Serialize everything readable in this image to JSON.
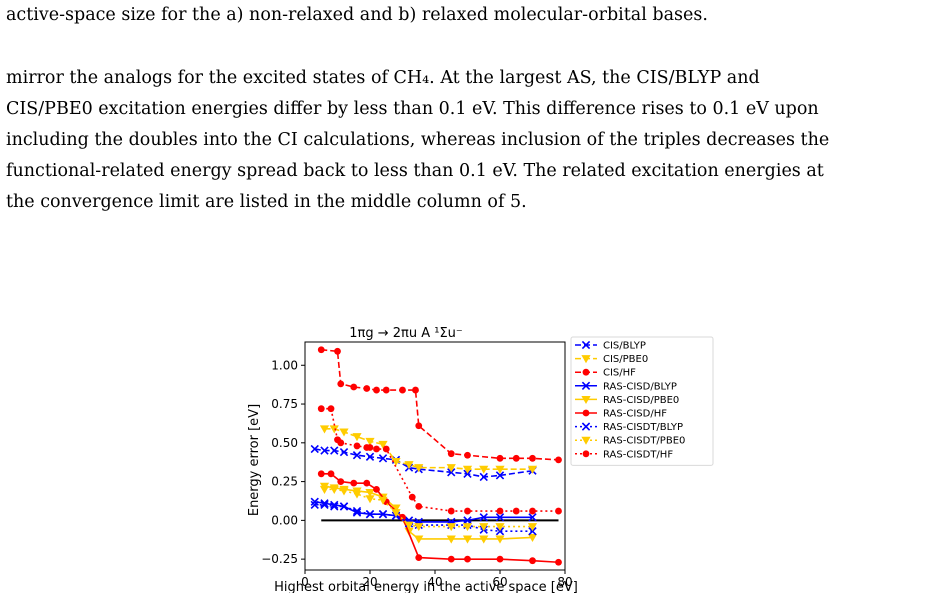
{
  "caption_tail": "active-space size for the a) non-relaxed and b) relaxed molecular-orbital bases.",
  "body": {
    "lines": [
      "mirror the analogs for the excited states of CH₄.  At the largest AS, the CIS/BLYP and",
      "CIS/PBE0 excitation energies differ by less than 0.1 eV. This difference rises to 0.1 eV upon",
      "including the doubles into the CI calculations, whereas inclusion of the triples decreases the",
      "functional-related energy spread back to less than 0.1 eV. The related excitation energies at",
      "the convergence limit are listed in the middle column of 5."
    ]
  },
  "chart_data": {
    "type": "line",
    "title": "1πg → 2πu A ¹Σu⁻",
    "xlabel": "Highest orbital energy in the active space [eV]",
    "ylabel": "Energy error [eV]",
    "xlim": [
      0,
      80
    ],
    "ylim": [
      -0.32,
      1.15
    ],
    "xticks": [
      0,
      20,
      40,
      60,
      80
    ],
    "yticks": [
      -0.25,
      0.0,
      0.25,
      0.5,
      0.75,
      1.0
    ],
    "ytick_labels": [
      "−0.25",
      "0.00",
      "0.25",
      "0.50",
      "0.75",
      "1.00"
    ],
    "reference_line": 0.0,
    "legend_position": "outside-right",
    "series": [
      {
        "name": "CIS/BLYP",
        "color": "#0000ff",
        "dash": "6,3",
        "marker": "x",
        "x": [
          3,
          6,
          9,
          12,
          16,
          20,
          24,
          28,
          32,
          35,
          45,
          50,
          55,
          60,
          70
        ],
        "y": [
          0.46,
          0.45,
          0.45,
          0.44,
          0.42,
          0.41,
          0.4,
          0.39,
          0.34,
          0.33,
          0.31,
          0.3,
          0.28,
          0.29,
          0.32
        ]
      },
      {
        "name": "CIS/PBE0",
        "color": "#ffcc00",
        "dash": "6,3",
        "marker": "v",
        "x": [
          6,
          9,
          12,
          16,
          20,
          24,
          28,
          32,
          35,
          45,
          50,
          55,
          60,
          70
        ],
        "y": [
          0.59,
          0.59,
          0.57,
          0.54,
          0.51,
          0.49,
          0.38,
          0.36,
          0.34,
          0.34,
          0.33,
          0.33,
          0.33,
          0.33
        ]
      },
      {
        "name": "CIS/HF",
        "color": "#ff0000",
        "dash": "6,3",
        "marker": "o",
        "x": [
          5,
          10,
          11,
          15,
          19,
          22,
          25,
          30,
          34,
          35,
          45,
          50,
          60,
          65,
          70,
          78
        ],
        "y": [
          1.1,
          1.09,
          0.88,
          0.86,
          0.85,
          0.84,
          0.84,
          0.84,
          0.84,
          0.61,
          0.43,
          0.42,
          0.4,
          0.4,
          0.4,
          0.39
        ]
      },
      {
        "name": "RAS-CISD/BLYP",
        "color": "#0000ff",
        "dash": "",
        "marker": "x",
        "x": [
          3,
          6,
          9,
          12,
          16,
          20,
          24,
          28,
          32,
          35,
          45,
          50,
          55,
          60,
          70
        ],
        "y": [
          0.12,
          0.11,
          0.1,
          0.09,
          0.05,
          0.04,
          0.04,
          0.03,
          0.0,
          -0.01,
          -0.01,
          0.0,
          0.02,
          0.02,
          0.02
        ]
      },
      {
        "name": "RAS-CISD/PBE0",
        "color": "#ffcc00",
        "dash": "",
        "marker": "v",
        "x": [
          6,
          9,
          12,
          16,
          20,
          24,
          28,
          32,
          35,
          45,
          50,
          55,
          60,
          70
        ],
        "y": [
          0.22,
          0.21,
          0.2,
          0.19,
          0.18,
          0.15,
          0.08,
          -0.07,
          -0.12,
          -0.12,
          -0.12,
          -0.12,
          -0.12,
          -0.11
        ]
      },
      {
        "name": "RAS-CISD/HF",
        "color": "#ff0000",
        "dash": "",
        "marker": "o",
        "x": [
          5,
          8,
          11,
          15,
          19,
          22,
          25,
          30,
          35,
          45,
          50,
          60,
          70,
          78
        ],
        "y": [
          0.3,
          0.3,
          0.25,
          0.24,
          0.24,
          0.2,
          0.12,
          0.02,
          -0.24,
          -0.25,
          -0.25,
          -0.25,
          -0.26,
          -0.27
        ]
      },
      {
        "name": "RAS-CISDT/BLYP",
        "color": "#0000ff",
        "dash": "2,3",
        "marker": "x",
        "x": [
          3,
          6,
          9,
          12,
          16,
          20,
          24,
          28,
          32,
          35,
          45,
          50,
          55,
          60,
          70
        ],
        "y": [
          0.1,
          0.1,
          0.09,
          0.09,
          0.06,
          0.04,
          0.04,
          0.03,
          -0.02,
          -0.03,
          -0.03,
          -0.03,
          -0.06,
          -0.07,
          -0.07
        ]
      },
      {
        "name": "RAS-CISDT/PBE0",
        "color": "#ffcc00",
        "dash": "2,3",
        "marker": "v",
        "x": [
          6,
          9,
          12,
          16,
          20,
          24,
          28,
          32,
          35,
          45,
          50,
          55,
          60,
          70
        ],
        "y": [
          0.2,
          0.2,
          0.19,
          0.17,
          0.14,
          0.13,
          0.05,
          -0.03,
          -0.04,
          -0.04,
          -0.04,
          -0.04,
          -0.04,
          -0.04
        ]
      },
      {
        "name": "RAS-CISDT/HF",
        "color": "#ff0000",
        "dash": "2,3",
        "marker": "o",
        "x": [
          5,
          8,
          10,
          11,
          16,
          19,
          20,
          22,
          25,
          33,
          35,
          45,
          50,
          60,
          65,
          70,
          78
        ],
        "y": [
          0.72,
          0.72,
          0.52,
          0.5,
          0.48,
          0.47,
          0.47,
          0.46,
          0.46,
          0.15,
          0.09,
          0.06,
          0.06,
          0.06,
          0.06,
          0.06,
          0.06
        ]
      }
    ]
  }
}
